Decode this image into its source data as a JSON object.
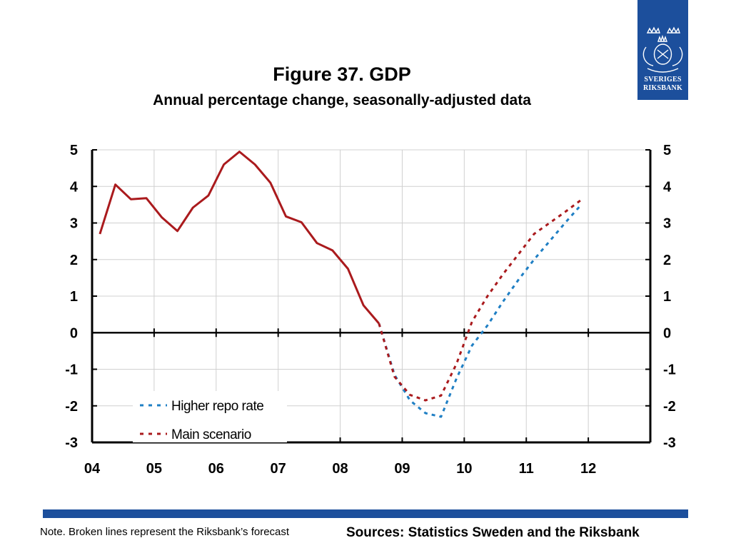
{
  "logo": {
    "line1": "SVERIGES",
    "line2": "RIKSBANK"
  },
  "header": {
    "title": "Figure 37. GDP",
    "subtitle": "Annual percentage change, seasonally-adjusted data"
  },
  "footer": {
    "note": "Note. Broken lines represent the Riksbank’s forecast",
    "sources": "Sources: Statistics Sweden and the Riksbank"
  },
  "colors": {
    "brand": "#1c4f9c",
    "outcome": "#aa1a1d",
    "higher_repo": "#1f7fc4",
    "axis": "#000000",
    "grid": "#d0d0d0"
  },
  "chart_data": {
    "type": "line",
    "title": "Figure 37. GDP",
    "subtitle": "Annual percentage change, seasonally-adjusted data",
    "x_ticks": [
      "04",
      "05",
      "06",
      "07",
      "08",
      "09",
      "10",
      "11",
      "12"
    ],
    "y_ticks": [
      5,
      4,
      3,
      2,
      1,
      0,
      -1,
      -2,
      -3
    ],
    "ylim": [
      -3,
      5
    ],
    "xlim": [
      2004.0,
      2013.0
    ],
    "grid": true,
    "secondary_y_axis": true,
    "legend_placement": "bottom-left",
    "series": [
      {
        "name": "",
        "style": "solid",
        "color": "#aa1a1d",
        "points": [
          [
            2004.125,
            2.7
          ],
          [
            2004.375,
            4.05
          ],
          [
            2004.625,
            3.65
          ],
          [
            2004.875,
            3.68
          ],
          [
            2005.125,
            3.15
          ],
          [
            2005.375,
            2.78
          ],
          [
            2005.625,
            3.42
          ],
          [
            2005.875,
            3.75
          ],
          [
            2006.125,
            4.6
          ],
          [
            2006.375,
            4.95
          ],
          [
            2006.625,
            4.6
          ],
          [
            2006.875,
            4.1
          ],
          [
            2007.125,
            3.18
          ],
          [
            2007.375,
            3.02
          ],
          [
            2007.625,
            2.45
          ],
          [
            2007.875,
            2.25
          ],
          [
            2008.125,
            1.75
          ],
          [
            2008.375,
            0.75
          ],
          [
            2008.625,
            0.25
          ]
        ]
      },
      {
        "name": "Higher repo rate",
        "style": "dashed",
        "color": "#1f7fc4",
        "points": [
          [
            2008.625,
            0.25
          ],
          [
            2008.875,
            -1.15
          ],
          [
            2009.125,
            -1.85
          ],
          [
            2009.375,
            -2.2
          ],
          [
            2009.625,
            -2.3
          ],
          [
            2009.875,
            -1.25
          ],
          [
            2010.125,
            -0.35
          ],
          [
            2010.375,
            0.2
          ],
          [
            2010.625,
            0.85
          ],
          [
            2010.875,
            1.45
          ],
          [
            2011.125,
            2.0
          ],
          [
            2011.375,
            2.5
          ],
          [
            2011.625,
            3.0
          ],
          [
            2011.875,
            3.48
          ]
        ]
      },
      {
        "name": "Main scenario",
        "style": "dashed",
        "color": "#aa1a1d",
        "points": [
          [
            2008.625,
            0.25
          ],
          [
            2008.875,
            -1.2
          ],
          [
            2009.125,
            -1.7
          ],
          [
            2009.375,
            -1.85
          ],
          [
            2009.625,
            -1.72
          ],
          [
            2009.875,
            -0.85
          ],
          [
            2010.125,
            0.3
          ],
          [
            2010.375,
            1.0
          ],
          [
            2010.625,
            1.6
          ],
          [
            2010.875,
            2.15
          ],
          [
            2011.125,
            2.7
          ],
          [
            2011.375,
            3.0
          ],
          [
            2011.625,
            3.3
          ],
          [
            2011.875,
            3.62
          ]
        ]
      }
    ]
  }
}
